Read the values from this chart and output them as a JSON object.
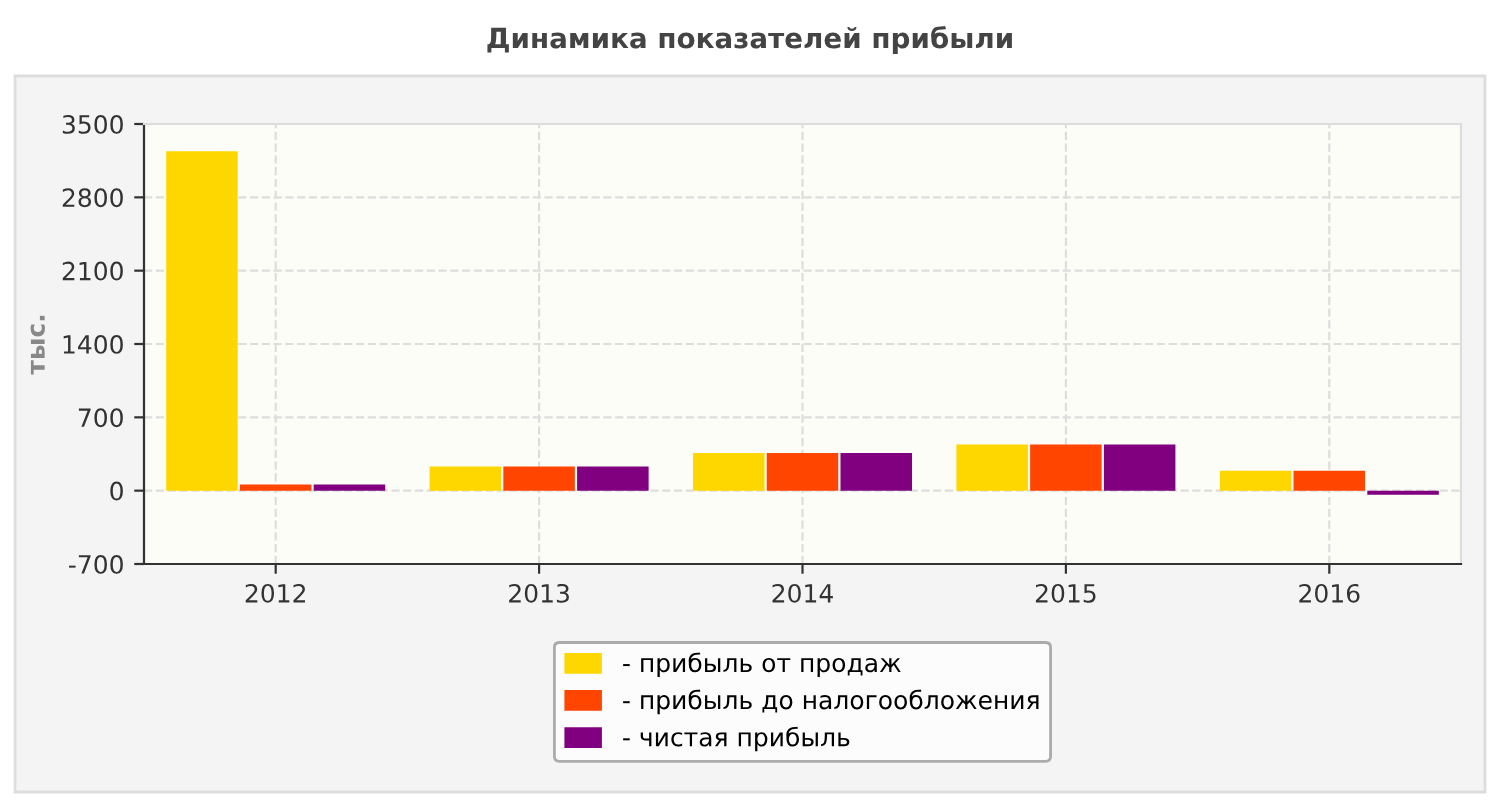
{
  "chart_data": {
    "type": "bar",
    "title": "Динамика показателей прибыли",
    "ylabel": "тыс.",
    "categories": [
      "2012",
      "2013",
      "2014",
      "2015",
      "2016"
    ],
    "series": [
      {
        "name": "- прибыль от продаж",
        "color": "#ffd700",
        "values": [
          3240,
          230,
          360,
          440,
          190
        ]
      },
      {
        "name": "- прибыль до налогообложения",
        "color": "#ff4500",
        "values": [
          60,
          230,
          360,
          440,
          190
        ]
      },
      {
        "name": "- чистая прибыль",
        "color": "#800080",
        "values": [
          60,
          230,
          360,
          440,
          -40
        ]
      }
    ],
    "ylim": [
      -700,
      3500
    ],
    "yticks": [
      -700,
      0,
      700,
      1400,
      2100,
      2800,
      3500
    ],
    "grid": true,
    "legend": "bottom"
  }
}
